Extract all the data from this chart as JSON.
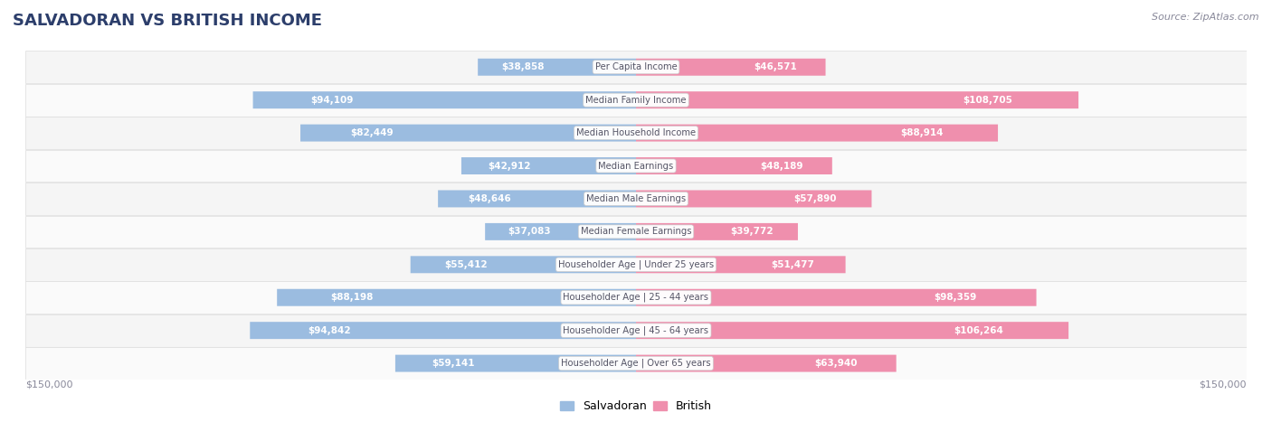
{
  "title": "SALVADORAN VS BRITISH INCOME",
  "source": "Source: ZipAtlas.com",
  "categories": [
    "Per Capita Income",
    "Median Family Income",
    "Median Household Income",
    "Median Earnings",
    "Median Male Earnings",
    "Median Female Earnings",
    "Householder Age | Under 25 years",
    "Householder Age | 25 - 44 years",
    "Householder Age | 45 - 64 years",
    "Householder Age | Over 65 years"
  ],
  "salvadoran_values": [
    38858,
    94109,
    82449,
    42912,
    48646,
    37083,
    55412,
    88198,
    94842,
    59141
  ],
  "british_values": [
    46571,
    108705,
    88914,
    48189,
    57890,
    39772,
    51477,
    98359,
    106264,
    63940
  ],
  "max_value": 150000,
  "salvadoran_color": "#9BBCE0",
  "british_color": "#EF8FAD",
  "row_bg_even": "#F5F5F5",
  "row_bg_odd": "#FAFAFA",
  "label_text_color": "#555566",
  "title_color": "#2C3E6B",
  "value_text_dark": "#555566",
  "value_text_white": "#FFFFFF",
  "axis_label_color": "#888899",
  "legend_salvadoran": "Salvadoran",
  "legend_british": "British",
  "bar_height": 0.52,
  "inside_threshold": 25000
}
